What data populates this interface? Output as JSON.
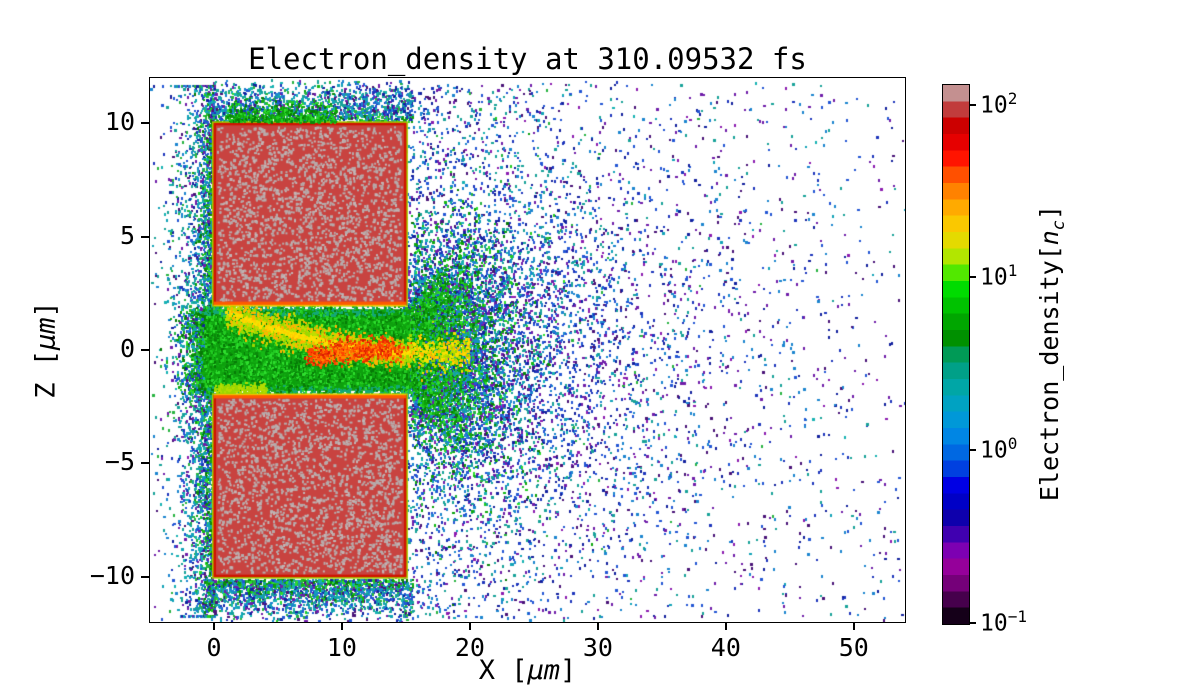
{
  "chart_data": {
    "type": "heatmap",
    "title": "Electron_density at 310.09532 fs",
    "xlabel": {
      "pre": "X [",
      "italic": "μm",
      "post": "]"
    },
    "ylabel": {
      "pre": "Z [",
      "italic": "μm",
      "post": "]"
    },
    "xlim": [
      -5,
      54
    ],
    "ylim": [
      -12,
      12
    ],
    "xticks": [
      {
        "value": 0,
        "label": "0"
      },
      {
        "value": 10,
        "label": "10"
      },
      {
        "value": 20,
        "label": "20"
      },
      {
        "value": 30,
        "label": "30"
      },
      {
        "value": 40,
        "label": "40"
      },
      {
        "value": 50,
        "label": "50"
      }
    ],
    "yticks": [
      {
        "value": 10,
        "label": "10"
      },
      {
        "value": 5,
        "label": "5"
      },
      {
        "value": 0,
        "label": "0"
      },
      {
        "value": -5,
        "label": "−5"
      },
      {
        "value": -10,
        "label": "−10"
      }
    ],
    "grid": false,
    "colorbar": {
      "label_pre": "Electron_density[",
      "label_math": "n",
      "label_sub": "c",
      "label_post": "]",
      "scale": "log",
      "min_exponent": -1,
      "max_exponent": 2.12,
      "ticks": [
        {
          "exponent": 2,
          "base": "10",
          "sup": "2"
        },
        {
          "exponent": 1,
          "base": "10",
          "sup": "1"
        },
        {
          "exponent": 0,
          "base": "10",
          "sup": "0"
        },
        {
          "exponent": -1,
          "base": "10",
          "sup": "−1"
        }
      ],
      "stops_bottom_to_top": [
        "#150019",
        "#46004c",
        "#750079",
        "#95009a",
        "#7d00b2",
        "#4000b0",
        "#0e00ac",
        "#0000c6",
        "#0000e4",
        "#0040e0",
        "#0068e2",
        "#0086e4",
        "#0098d8",
        "#00a2c2",
        "#00a6a6",
        "#00a088",
        "#009a56",
        "#009000",
        "#00a600",
        "#00c200",
        "#00dc00",
        "#52e800",
        "#b2e600",
        "#e4da00",
        "#fac800",
        "#ffaa00",
        "#ff8200",
        "#ff5000",
        "#ff1400",
        "#e60000",
        "#cc0000",
        "#c13c3c",
        "#c49090"
      ]
    },
    "features": {
      "targets": [
        {
          "name": "upper-target",
          "x": [
            0,
            15
          ],
          "z": [
            2,
            10
          ],
          "density_nc": "≈100"
        },
        {
          "name": "lower-target",
          "x": [
            0,
            15
          ],
          "z": [
            -10,
            -2
          ],
          "density_nc": "≈100"
        }
      ],
      "channel": {
        "x": [
          -1.1,
          15.4
        ],
        "z": [
          -1.95,
          1.95
        ],
        "density_nc": "≈2–8",
        "hot_arc": {
          "from": [
            0.8,
            1.74
          ],
          "to": [
            15.4,
            -0.08
          ],
          "peak_density_nc": "≈30–80",
          "hotspot_centers": [
            [
              9.8,
              -0.05
            ],
            [
              11.6,
              0.03
            ],
            [
              13.4,
              0.1
            ],
            [
              8.2,
              -0.25
            ]
          ]
        }
      },
      "plume": {
        "origin_x": 15,
        "spread": "conical toward +x",
        "density_nc": "≈0.1–2"
      },
      "halo": {
        "around": "targets and left edge",
        "density_nc": "≈0.3–2"
      }
    },
    "style": {
      "block_fill": "#c84340",
      "block_speckle": "#b7abab",
      "block_speckle2": "#c3b5b5",
      "block_border": "#cf1400",
      "block_outline": "#a4ce00",
      "gap_edge": "#ff5a00",
      "gap_edge_hi": "#ffc400",
      "gap_base": "#0ea00e",
      "palette_cold": {
        "colors": [
          "#18a299",
          "#12a3b8",
          "#1b85cf",
          "#2256d4",
          "#1d35bb",
          "#12219e",
          "#6f1da9",
          "#491378",
          "#28b441",
          "#17b2b2"
        ],
        "weights": [
          0.2,
          0.1,
          0.14,
          0.12,
          0.07,
          0.05,
          0.08,
          0.05,
          0.11,
          0.08
        ]
      },
      "palette_far": {
        "colors": [
          "#1b85cf",
          "#2256d4",
          "#1d35bb",
          "#12219e",
          "#6f1da9",
          "#491378",
          "#18a299",
          "#8c1bb0"
        ],
        "weights": [
          0.16,
          0.18,
          0.14,
          0.12,
          0.14,
          0.08,
          0.12,
          0.06
        ]
      },
      "palette_greens": [
        "#0ca00c",
        "#15b815",
        "#22cc22",
        "#0a8a0a",
        "#2ede2e",
        "#067a06",
        "#11a811"
      ],
      "gap_fringe_teal": "#12a878",
      "arc_core": [
        "#ffdf00",
        "#ffd000",
        "#f2e200"
      ],
      "arc_rim": [
        "#ffb400",
        "#bede00",
        "#9cd800"
      ],
      "hot": [
        "#ff6a00",
        "#ff4300",
        "#e62d00",
        "#ff8a00"
      ],
      "hot_deep": "#d81800",
      "fringe_yellow": [
        "#b4dc00",
        "#9cd800"
      ]
    },
    "render": {
      "seed": 1337,
      "layers": {
        "uniform_bg": 1050,
        "extra_purple": 260,
        "left_halo": 2400,
        "left_hug": 1300,
        "fringe_top": 1600,
        "fringe_bottom": 1600,
        "below_bottom_specks": 300,
        "wide_halo": 2400,
        "plume_far": 5200,
        "plume_near": 2600,
        "gap_speckle": 5200,
        "left_spill": 500,
        "gap_fan": 3000,
        "arc": 2300,
        "arc_tail": 380,
        "bottom_fringe_yellow": 250,
        "hotspots": 720,
        "top_edge_clumps": 450,
        "block_speckles": 2100
      }
    }
  }
}
